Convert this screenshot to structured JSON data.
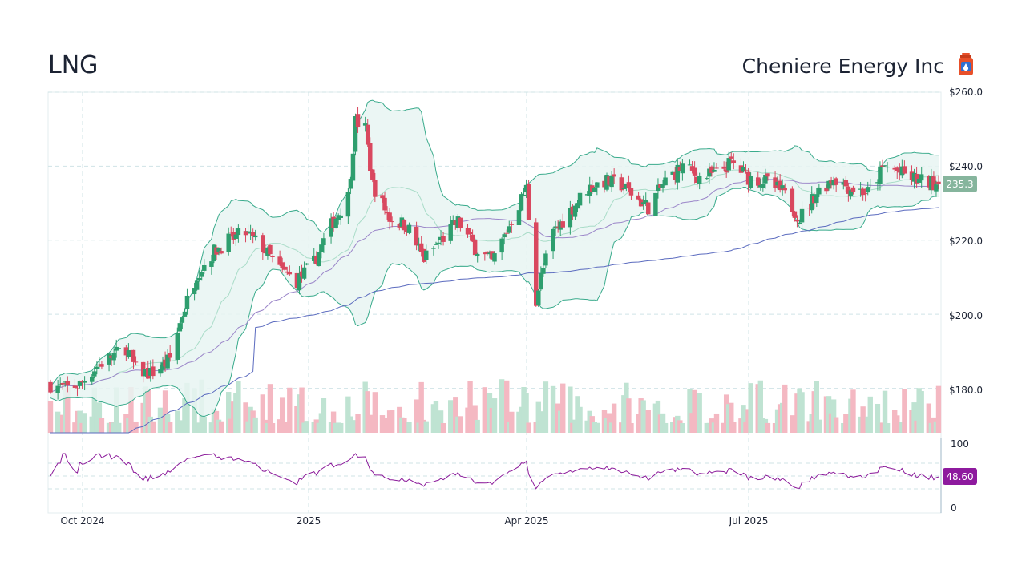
{
  "header": {
    "ticker": "LNG",
    "company": "Cheniere Energy Inc",
    "logo_icon": "gas-canister-icon",
    "logo_color": "#e8502a"
  },
  "colors": {
    "up": "#2e9e6e",
    "down": "#d9485f",
    "up_volume": "#bfe3d2",
    "down_volume": "#f4b8c2",
    "band_fill": "#e8f5f2",
    "band_line": "#3aab8c",
    "sma_fast": "#9b86c9",
    "sma_slow": "#5b6bbf",
    "rsi_line": "#8b1a9a",
    "price_tag": "#86b59d",
    "rsi_tag": "#8e1a9e",
    "grid": "#cfe3e6"
  },
  "price_axis": {
    "ticks": [
      "$260.0",
      "$240.0",
      "$220.0",
      "$200.0",
      "$180.0"
    ],
    "tick_values": [
      260,
      240,
      220,
      200,
      180
    ]
  },
  "rsi_axis": {
    "ticks": [
      "100",
      "0"
    ],
    "tick_values": [
      100,
      0
    ]
  },
  "last_price_label": "235.3",
  "last_rsi_label": "48.60",
  "x_axis": {
    "labels": [
      "Oct 2024",
      "2025",
      "Apr 2025",
      "Jul 2025"
    ]
  },
  "chart_data": {
    "type": "candlestick",
    "title": "LNG",
    "subtitle": "Cheniere Energy Inc",
    "ylim": [
      168,
      260
    ],
    "x_range": [
      "2024-09-20",
      "2025-09-19"
    ],
    "anchors": [
      [
        "2024-09-20",
        181
      ],
      [
        "2024-09-26",
        180
      ],
      [
        "2024-10-02",
        181
      ],
      [
        "2024-10-09",
        186
      ],
      [
        "2024-10-16",
        189
      ],
      [
        "2024-10-21",
        191
      ],
      [
        "2024-10-25",
        185
      ],
      [
        "2024-10-31",
        184
      ],
      [
        "2024-11-05",
        186
      ],
      [
        "2024-11-08",
        188
      ],
      [
        "2024-11-13",
        200
      ],
      [
        "2024-11-19",
        211
      ],
      [
        "2024-11-26",
        217
      ],
      [
        "2024-12-02",
        220
      ],
      [
        "2024-12-09",
        222
      ],
      [
        "2024-12-16",
        218
      ],
      [
        "2024-12-23",
        212
      ],
      [
        "2024-12-30",
        209
      ],
      [
        "2025-01-06",
        214
      ],
      [
        "2025-01-13",
        224
      ],
      [
        "2025-01-20",
        232
      ],
      [
        "2025-01-23",
        252
      ],
      [
        "2025-01-27",
        250
      ],
      [
        "2025-01-30",
        235
      ],
      [
        "2025-02-06",
        226
      ],
      [
        "2025-02-13",
        224
      ],
      [
        "2025-02-20",
        215
      ],
      [
        "2025-02-27",
        220
      ],
      [
        "2025-03-06",
        225
      ],
      [
        "2025-03-13",
        218
      ],
      [
        "2025-03-20",
        214
      ],
      [
        "2025-03-27",
        224
      ],
      [
        "2025-04-03",
        234
      ],
      [
        "2025-04-07",
        204
      ],
      [
        "2025-04-09",
        210
      ],
      [
        "2025-04-14",
        222
      ],
      [
        "2025-04-21",
        228
      ],
      [
        "2025-04-28",
        234
      ],
      [
        "2025-05-05",
        236
      ],
      [
        "2025-05-12",
        235
      ],
      [
        "2025-05-19",
        231
      ],
      [
        "2025-05-23",
        229
      ],
      [
        "2025-05-30",
        236
      ],
      [
        "2025-06-06",
        240
      ],
      [
        "2025-06-13",
        237
      ],
      [
        "2025-06-20",
        238
      ],
      [
        "2025-06-26",
        241
      ],
      [
        "2025-07-03",
        237
      ],
      [
        "2025-07-10",
        236
      ],
      [
        "2025-07-17",
        233
      ],
      [
        "2025-07-24",
        226
      ],
      [
        "2025-07-31",
        233
      ],
      [
        "2025-08-07",
        237
      ],
      [
        "2025-08-14",
        234
      ],
      [
        "2025-08-21",
        233
      ],
      [
        "2025-08-28",
        240
      ],
      [
        "2025-09-04",
        238
      ],
      [
        "2025-09-11",
        236
      ],
      [
        "2025-09-19",
        235.3
      ]
    ],
    "volume_scale": [
      0,
      100
    ],
    "rsi_range": [
      0,
      100
    ],
    "rsi_last": 48.6
  }
}
